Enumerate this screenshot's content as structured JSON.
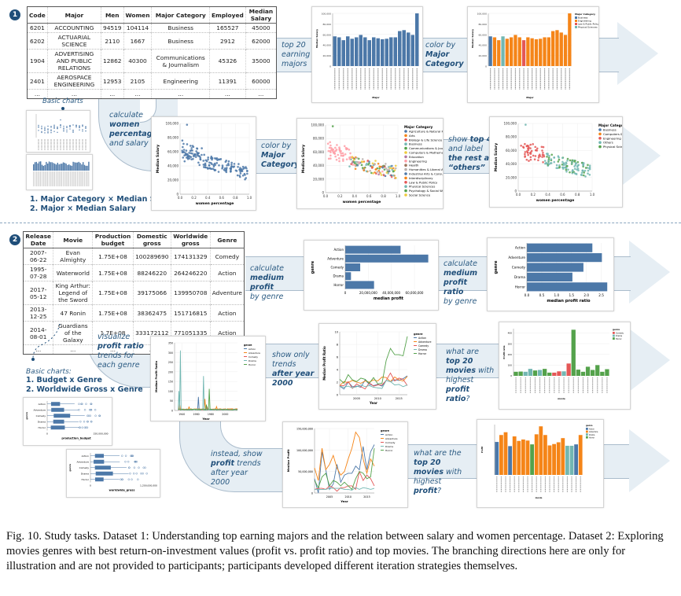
{
  "figure": {
    "caption": "Fig. 10.  Study tasks. Dataset 1: Understanding top earning majors and the relation between salary and women percentage. Dataset 2: Exploring movies genres with best return-on-investment values (profit vs. profit ratio) and top movies. The branching directions here are only for illustration and are not provided to participants; participants developed different iteration strategies themselves."
  },
  "dataset1": {
    "badge": "1",
    "table": {
      "headers": [
        "Code",
        "Major",
        "Men",
        "Women",
        "Major Category",
        "Employed",
        "Median Salary"
      ],
      "rows": [
        [
          "6201",
          "ACCOUNTING",
          "94519",
          "104114",
          "Business",
          "165527",
          "45000"
        ],
        [
          "6202",
          "ACTUARIAL SCIENCE",
          "2110",
          "1667",
          "Business",
          "2912",
          "62000"
        ],
        [
          "1904",
          "ADVERTISING AND PUBLIC RELATIONS",
          "12862",
          "40300",
          "Communications & Journalism",
          "45326",
          "35000"
        ],
        [
          "2401",
          "AEROSPACE ENGINEERING",
          "12953",
          "2105",
          "Engineering",
          "11391",
          "60000"
        ],
        [
          "...",
          "...",
          "...",
          "...",
          "...",
          "...",
          "..."
        ]
      ]
    },
    "basic_charts_label": "Basic charts",
    "basic_charts_list": [
      "1. Major Category × Median Salary",
      "2. Major × Median Salary"
    ],
    "steps": {
      "top20": {
        "pre": "top 20",
        "post": "earning majors"
      },
      "color_by": {
        "pre": "color by",
        "bold": "Major Category"
      },
      "calc_women": {
        "pre": "calculate",
        "bold": "women percentage",
        "post": "and salary"
      },
      "color_by2": {
        "pre": "color by",
        "bold": "Major Category"
      },
      "top4": {
        "pre": "show",
        "bold1": "top 4",
        "mid": "and label",
        "bold2": "the rest as “others”"
      }
    }
  },
  "dataset2": {
    "badge": "2",
    "table": {
      "headers": [
        "Release Date",
        "Movie",
        "Production budget",
        "Domestic gross",
        "Worldwide gross",
        "Genre"
      ],
      "rows": [
        [
          "2007-06-22",
          "Evan Almighty",
          "1.75E+08",
          "100289690",
          "174131329",
          "Comedy"
        ],
        [
          "1995-07-28",
          "Waterworld",
          "1.75E+08",
          "88246220",
          "264246220",
          "Action"
        ],
        [
          "2017-05-12",
          "King Arthur: Legend of the Sword",
          "1.75E+08",
          "39175066",
          "139950708",
          "Adventure"
        ],
        [
          "2013-12-25",
          "47 Ronin",
          "1.75E+08",
          "38362475",
          "151716815",
          "Action"
        ],
        [
          "2014-08-01",
          "Guardians of the Galaxy",
          "1.7E+08",
          "333172112",
          "771051335",
          "Action"
        ],
        [
          "...",
          "...",
          "...",
          "...",
          "...",
          "..."
        ]
      ]
    },
    "basic_charts_label": "Basic charts:",
    "basic_charts_list": [
      "1. Budget x Genre",
      "2. Worldwide Gross x Genre"
    ],
    "steps": {
      "median_profit": {
        "pre": "calculate",
        "bold": "medium profit",
        "post": "by genre"
      },
      "profit_ratio": {
        "pre": "calculate",
        "bold": "medium profit ratio",
        "post": "by genre"
      },
      "visualize": {
        "pre": "visualize",
        "bold": "profit ratio",
        "post": "trends for each genre"
      },
      "after2000": {
        "pre": "show only trends",
        "bold": "after year 2000"
      },
      "top20ratio": {
        "pre": "what are",
        "bold1": "top 20 movies",
        "mid": "with highest",
        "bold2": "profit ratio",
        "post": "?"
      },
      "instead": {
        "pre": "instead, show",
        "bold": "profit",
        "post": "trends after year 2000"
      },
      "top20profit": {
        "pre": "what are the",
        "bold1": "top 20 movies",
        "mid": "with highest",
        "bold2": "profit",
        "post": "?"
      }
    }
  },
  "colors": {
    "tableau_blue": "#4c78a8",
    "tableau_orange": "#f58518",
    "tableau_red": "#e45756",
    "tableau_teal": "#72b7b2",
    "tableau_green": "#54a24b",
    "label_blue": "#1f4e79",
    "band": "#e6eef4"
  },
  "chart_data": [
    {
      "id": "top20-majors",
      "type": "bar",
      "xlabel": "Major",
      "ylabel": "Median Salary",
      "yticks": [
        "0",
        "20,000",
        "40,000",
        "60,000",
        "80,000",
        "100,000"
      ],
      "ylim": [
        0,
        110000
      ],
      "values": [
        62000,
        60000,
        54000,
        62000,
        57000,
        60000,
        65000,
        60000,
        54000,
        60000,
        58000,
        56000,
        57000,
        60000,
        60000,
        73000,
        75000,
        70000,
        65000,
        110000
      ]
    },
    {
      "id": "top20-majors-colored",
      "type": "bar",
      "xlabel": "Major",
      "ylabel": "Median Salary",
      "legend_title": "Major Category",
      "legend": [
        "Business",
        "Engineering",
        "Law & Public Policy",
        "Physical Sciences"
      ],
      "ylim": [
        0,
        110000
      ],
      "values": [
        62000,
        60000,
        54000,
        62000,
        57000,
        60000,
        65000,
        60000,
        54000,
        60000,
        58000,
        56000,
        57000,
        60000,
        60000,
        73000,
        75000,
        70000,
        65000,
        110000
      ],
      "categories_idx": [
        0,
        1,
        1,
        3,
        1,
        1,
        1,
        1,
        2,
        1,
        1,
        1,
        1,
        1,
        1,
        1,
        1,
        1,
        1,
        1
      ]
    },
    {
      "id": "women-scatter",
      "type": "scatter",
      "xlabel": "women percentage",
      "ylabel": "Median Salary",
      "xticks": [
        "0.0",
        "0.2",
        "0.4",
        "0.6",
        "0.8",
        "1.0"
      ],
      "yticks": [
        "0",
        "20,000",
        "40,000",
        "60,000",
        "80,000",
        "100,000"
      ],
      "xlim": [
        0,
        1
      ],
      "ylim": [
        0,
        110000
      ]
    },
    {
      "id": "women-scatter-colored",
      "type": "scatter",
      "xlabel": "women percentage",
      "ylabel": "Median Salary",
      "legend_title": "Major Category",
      "legend": [
        "Agriculture & Natural Reso",
        "Arts",
        "Biology & Life Science",
        "Business",
        "Communications & Journa",
        "Computers & Mathematics",
        "Education",
        "Engineering",
        "Health",
        "Humanities & Liberal Arts",
        "Industrial Arts & Consumer",
        "Interdisciplinary",
        "Law & Public Policy",
        "Physical Sciences",
        "Psychology & Social Work",
        "Social Science"
      ]
    },
    {
      "id": "women-scatter-top4",
      "type": "scatter",
      "xlabel": "women percentage",
      "ylabel": "Median Salary",
      "legend_title": "Major Category",
      "legend": [
        "Business",
        "Computers & Mathem",
        "Engineering",
        "Others",
        "Physical Sciences"
      ]
    },
    {
      "id": "median-profit",
      "type": "bar",
      "orientation": "horizontal",
      "categories": [
        "Action",
        "Adventure",
        "Comedy",
        "Drama",
        "Horror"
      ],
      "values": [
        48000000,
        72000000,
        13000000,
        5000000,
        25000000
      ],
      "xlabel": "median profit",
      "ylabel": "genre",
      "xticks": [
        "0",
        "20,000,000",
        "40,000,000",
        "60,000,000"
      ],
      "xlim": [
        0,
        75000000
      ]
    },
    {
      "id": "median-profit-ratio",
      "type": "bar",
      "orientation": "horizontal",
      "categories": [
        "Action",
        "Adventure",
        "Comedy",
        "Drama",
        "Horror"
      ],
      "values": [
        2.2,
        2.52,
        1.9,
        1.53,
        2.7
      ],
      "xlabel": "median profit ratio",
      "ylabel": "genre",
      "xticks": [
        "0.0",
        "0.5",
        "1.0",
        "1.5",
        "2.0",
        "2.5"
      ],
      "xlim": [
        0,
        2.8
      ]
    },
    {
      "id": "profit-ratio-trend",
      "type": "line",
      "xlabel": "Year",
      "ylabel": "Median Profit Ratio",
      "xticks": [
        "1940",
        "1960",
        "1980",
        "2000"
      ],
      "yticks": [
        "0",
        "50",
        "100",
        "150",
        "200",
        "250",
        "300",
        "350"
      ],
      "legend_title": "genre",
      "legend": [
        "Action",
        "Adventure",
        "Comedy",
        "Drama",
        "Horror"
      ]
    },
    {
      "id": "profit-ratio-after2000",
      "type": "line",
      "xlabel": "Year",
      "ylabel": "Median Profit Ratio",
      "xticks": [
        "2005",
        "2010",
        "2015"
      ],
      "yticks": [
        "0",
        "2",
        "4",
        "6",
        "8",
        "10"
      ],
      "legend_title": "genre",
      "legend": [
        "Action",
        "Adventure",
        "Comedy",
        "Drama",
        "Horror"
      ],
      "x": [
        2001,
        2002,
        2003,
        2004,
        2005,
        2006,
        2007,
        2008,
        2009,
        2010,
        2011,
        2012,
        2013,
        2014,
        2015,
        2016,
        2017
      ],
      "series": [
        {
          "name": "Action",
          "values": [
            1.5,
            1.0,
            2.2,
            1.4,
            1.5,
            1.3,
            2.6,
            1.8,
            1.6,
            1.8,
            1.5,
            2.5,
            2.3,
            2.6,
            2.5,
            2.8,
            3.3
          ]
        },
        {
          "name": "Adventure",
          "values": [
            1.6,
            2.3,
            2.1,
            2.5,
            2.2,
            2.0,
            2.4,
            2.2,
            2.6,
            2.4,
            3.1,
            3.0,
            2.3,
            3.1,
            2.6,
            2.4,
            3.2
          ]
        },
        {
          "name": "Comedy",
          "values": [
            1.6,
            1.6,
            2.3,
            1.1,
            1.9,
            1.4,
            1.0,
            2.1,
            1.5,
            1.7,
            1.7,
            2.5,
            3.8,
            2.4,
            2.9,
            2.7,
            1.6
          ]
        },
        {
          "name": "Drama",
          "values": [
            1.5,
            1.3,
            1.5,
            1.2,
            1.4,
            1.7,
            1.4,
            1.6,
            1.3,
            1.2,
            1.1,
            2.5,
            2.3,
            1.7,
            1.8,
            1.4,
            1.7
          ]
        },
        {
          "name": "Horror",
          "values": [
            2.7,
            2.0,
            3.5,
            2.6,
            2.3,
            2.9,
            2.7,
            2.0,
            3.0,
            1.9,
            2.0,
            6.0,
            8.1,
            7.0,
            7.0,
            6.8,
            10.2
          ]
        }
      ]
    },
    {
      "id": "top20-profit-ratio",
      "type": "bar",
      "xlabel": "movie",
      "ylabel": "Profit ratio",
      "yticks": [
        "0",
        "100",
        "200",
        "300",
        "400"
      ],
      "legend_title": "genre",
      "legend": [
        "Comedy",
        "Drama",
        "Horror"
      ],
      "values": [
        38,
        40,
        38,
        65,
        50,
        55,
        65,
        30,
        30,
        42,
        42,
        115,
        430,
        58,
        38,
        85,
        55,
        100,
        38,
        62
      ],
      "categories_idx": [
        2,
        2,
        1,
        1,
        2,
        1,
        2,
        2,
        0,
        0,
        1,
        0,
        2,
        2,
        2,
        2,
        2,
        2,
        2,
        2
      ]
    },
    {
      "id": "profit-after2000",
      "type": "line",
      "xlabel": "Year",
      "ylabel": "Median Profit",
      "xticks": [
        "2005",
        "2010",
        "2015"
      ],
      "yticks": [
        "0",
        "50,000,000",
        "100,000,000",
        "150,000,000"
      ],
      "legend_title": "genre",
      "legend": [
        "Action",
        "Adventure",
        "Comedy",
        "Drama",
        "Horror"
      ],
      "x": [
        2001,
        2002,
        2003,
        2004,
        2005,
        2006,
        2007,
        2008,
        2009,
        2010,
        2011,
        2012,
        2013,
        2014,
        2015,
        2016,
        2017
      ],
      "series": [
        {
          "name": "Action",
          "values": [
            35,
            -5,
            110,
            60,
            5,
            20,
            75,
            25,
            45,
            50,
            50,
            70,
            60,
            125,
            60,
            110,
            130
          ]
        },
        {
          "name": "Adventure",
          "values": [
            65,
            30,
            120,
            60,
            75,
            100,
            65,
            45,
            55,
            90,
            120,
            165,
            150,
            90,
            50,
            90,
            70
          ]
        },
        {
          "name": "Comedy",
          "values": [
            5,
            8,
            8,
            5,
            15,
            10,
            0,
            10,
            10,
            15,
            15,
            5,
            55,
            30,
            45,
            35,
            15
          ]
        },
        {
          "name": "Drama",
          "values": [
            5,
            5,
            5,
            5,
            8,
            8,
            8,
            8,
            5,
            5,
            3,
            10,
            5,
            10,
            8,
            5,
            8
          ]
        },
        {
          "name": "Horror",
          "values": [
            30,
            10,
            40,
            50,
            15,
            30,
            25,
            15,
            25,
            15,
            5,
            35,
            55,
            50,
            35,
            40,
            120
          ]
        }
      ]
    },
    {
      "id": "top20-profit",
      "type": "bar",
      "xlabel": "movie",
      "ylabel": "Profit",
      "legend_title": "genre",
      "legend": [
        "Action",
        "Adventure",
        "Drama",
        "Horror"
      ],
      "values": [
        950,
        1150,
        1230,
        830,
        1110,
        980,
        1020,
        990,
        880,
        1170,
        1400,
        1150,
        850,
        890,
        940,
        1060,
        840,
        840,
        880,
        1150
      ],
      "categories_idx": [
        0,
        1,
        1,
        0,
        1,
        1,
        1,
        1,
        3,
        1,
        1,
        1,
        1,
        1,
        1,
        1,
        2,
        2,
        0,
        1
      ]
    },
    {
      "id": "budget-boxplot",
      "type": "boxplot",
      "categories": [
        "Action",
        "Adventure",
        "Comedy",
        "Drama",
        "Horror"
      ],
      "xlabel": "production_budget",
      "ylabel": "genre",
      "xticks": [
        "0",
        "150,000,000"
      ]
    },
    {
      "id": "worldwide-boxplot",
      "type": "boxplot",
      "categories": [
        "Action",
        "Adventure",
        "Comedy",
        "Drama",
        "Horror"
      ],
      "xlabel": "worldwide_gross",
      "ylabel": "genre",
      "xticks": [
        "0",
        "1,200,000,000"
      ]
    }
  ]
}
